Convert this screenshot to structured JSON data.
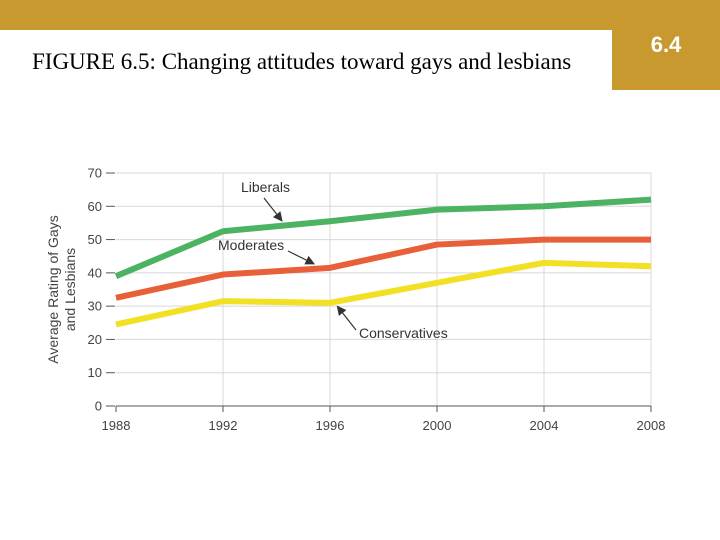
{
  "slide": {
    "title": "FIGURE 6.5: Changing attitudes toward gays and lesbians",
    "badge": "6.4",
    "accent_color": "#c8992f"
  },
  "chart_data": {
    "type": "line",
    "title": "",
    "xlabel": "",
    "ylabel": "Average Rating of Gays and Lesbians",
    "ylabel_lines": [
      "Average Rating of Gays",
      "and Lesbians"
    ],
    "x": [
      "1988",
      "1992",
      "1996",
      "2000",
      "2004",
      "2008"
    ],
    "yticks": [
      "0",
      "10",
      "20",
      "30",
      "40",
      "50",
      "60",
      "70"
    ],
    "ylim": [
      0,
      70
    ],
    "grid": true,
    "series": [
      {
        "name": "Liberals",
        "color": "#4cb363",
        "values": [
          39,
          52.5,
          55.5,
          59,
          60,
          62
        ]
      },
      {
        "name": "Moderates",
        "color": "#e8603a",
        "values": [
          32.5,
          39.5,
          41.5,
          48.5,
          50,
          50
        ]
      },
      {
        "name": "Conservatives",
        "color": "#f2e025",
        "values": [
          24.5,
          31.5,
          31,
          37,
          43,
          42
        ]
      }
    ]
  }
}
